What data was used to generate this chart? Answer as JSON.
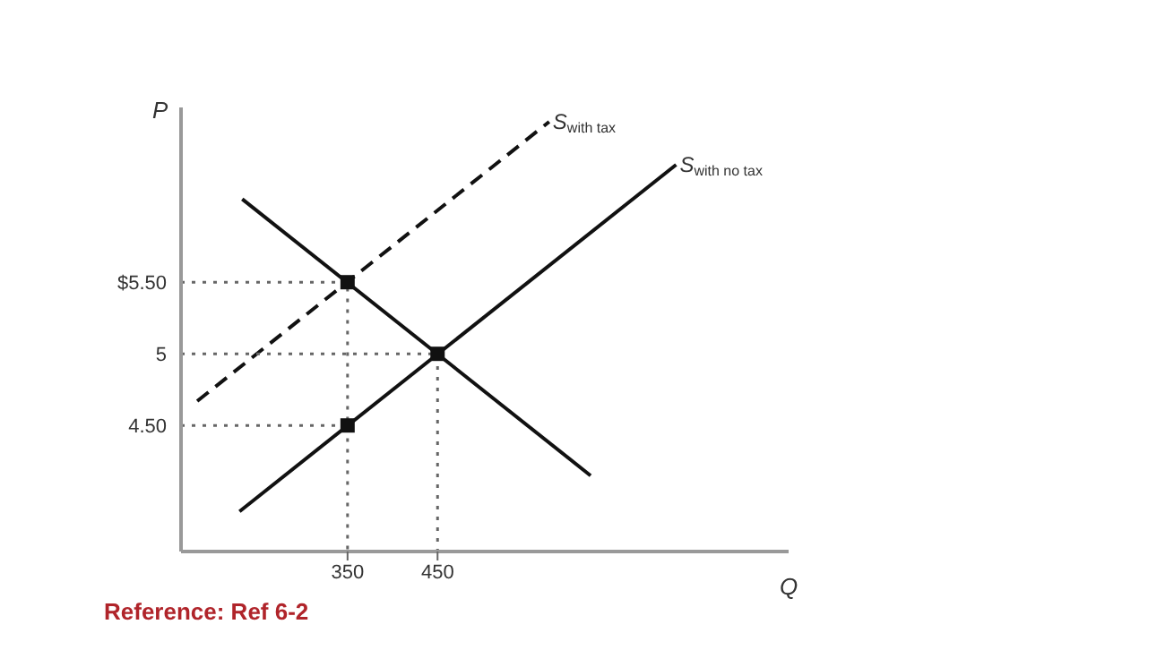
{
  "chart_data": {
    "type": "line",
    "xlabel": "Q",
    "ylabel": "P",
    "xlim": [
      165,
      840
    ],
    "ylim": [
      3.62,
      6.72
    ],
    "xticks": [
      350,
      450
    ],
    "yticks": [
      {
        "value": 4.5,
        "label": "4.50"
      },
      5,
      {
        "value": 5.5,
        "label": "$5.50"
      }
    ],
    "grid": false,
    "series": [
      {
        "color": "#111111",
        "line_style": "solid",
        "x": [
          233,
          620
        ],
        "values": [
          6.08,
          4.15
        ]
      },
      {
        "name": "S$_{with no tax}$",
        "color": "#111111",
        "line_style": "solid",
        "x": [
          230,
          715
        ],
        "values": [
          3.9,
          6.32
        ]
      },
      {
        "name": "S$_{with tax}$",
        "color": "#111111",
        "line_style": "dashed",
        "x": [
          183,
          574
        ],
        "values": [
          4.67,
          6.62
        ]
      },
      {
        "color": "#666666",
        "line_style": "dotted",
        "x": [
          165,
          350,
          350
        ],
        "values": [
          5.5,
          5.5,
          3.62
        ]
      },
      {
        "color": "#666666",
        "line_style": "dotted",
        "x": [
          165,
          450,
          450
        ],
        "values": [
          5,
          5,
          3.62
        ]
      },
      {
        "color": "#666666",
        "line_style": "dotted",
        "x": [
          165,
          350
        ],
        "values": [
          4.5,
          4.5
        ]
      },
      {
        "type": "scatter",
        "color": "#111111",
        "marker": "square",
        "x": [
          350,
          450,
          350
        ],
        "values": [
          5.5,
          5,
          4.5
        ]
      }
    ],
    "annotations": [
      "Reference: Ref 6-2"
    ]
  }
}
